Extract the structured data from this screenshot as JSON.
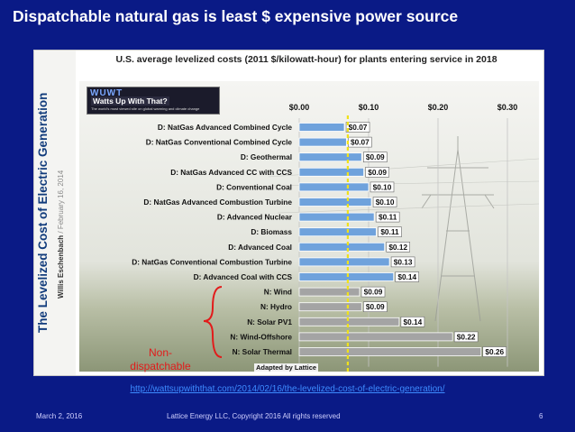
{
  "slide": {
    "title": "Dispatchable natural gas is least $ expensive power source",
    "url": "http://wattsupwiththat.com/2014/02/16/the-levelized-cost-of-electric-generation/",
    "footer": {
      "date": "March 2, 2016",
      "center": "Lattice Energy LLC, Copyright 2016   All rights reserved",
      "page": "6"
    }
  },
  "panel": {
    "side_title": "The Levelized Cost of Electric Generation",
    "author": "Willis Eschenbach",
    "date": "February 16, 2014",
    "wuwt_logo": "WUWT",
    "wuwt_name": "Watts Up With That?",
    "wuwt_tagline": "The world's most viewed site on global warming and climate change",
    "non_dispatchable_label": "Non-\ndispatchable",
    "adapted": "Adapted by Lattice"
  },
  "colors": {
    "background": "#0a1a86",
    "dispatchable_bar": "#6fa2dc",
    "non_dispatchable_bar": "#a4a4a4",
    "marker_line": "#f0e21a",
    "bracket": "#e21b1b"
  },
  "chart_data": {
    "type": "bar",
    "orientation": "horizontal",
    "title": "U.S. average levelized costs (2011 $/kilowatt-hour) for plants entering service in 2018",
    "xlim": [
      0,
      0.3
    ],
    "x_ticks": [
      "$0.00",
      "$0.10",
      "$0.20",
      "$0.30"
    ],
    "marker_value": 0.07,
    "categories": [
      "D: NatGas Advanced Combined Cycle",
      "D: NatGas Conventional Combined Cycle",
      "D: Geothermal",
      "D: NatGas Advanced CC with CCS",
      "D: Conventional Coal",
      "D: NatGas Advanced Combustion Turbine",
      "D: Advanced Nuclear",
      "D: Biomass",
      "D: Advanced Coal",
      "D: NatGas Conventional Combustion Turbine",
      "D: Advanced Coal with CCS",
      "N: Wind",
      "N: Hydro",
      "N: Solar PV1",
      "N: Wind-Offshore",
      "N: Solar Thermal"
    ],
    "values": [
      0.065,
      0.068,
      0.09,
      0.093,
      0.1,
      0.104,
      0.108,
      0.111,
      0.123,
      0.13,
      0.136,
      0.087,
      0.09,
      0.144,
      0.221,
      0.262
    ],
    "value_labels": [
      "$0.07",
      "$0.07",
      "$0.09",
      "$0.09",
      "$0.10",
      "$0.10",
      "$0.11",
      "$0.11",
      "$0.12",
      "$0.13",
      "$0.14",
      "$0.09",
      "$0.09",
      "$0.14",
      "$0.22",
      "$0.26"
    ],
    "dispatchable": [
      true,
      true,
      true,
      true,
      true,
      true,
      true,
      true,
      true,
      true,
      true,
      false,
      false,
      false,
      false,
      false
    ]
  }
}
